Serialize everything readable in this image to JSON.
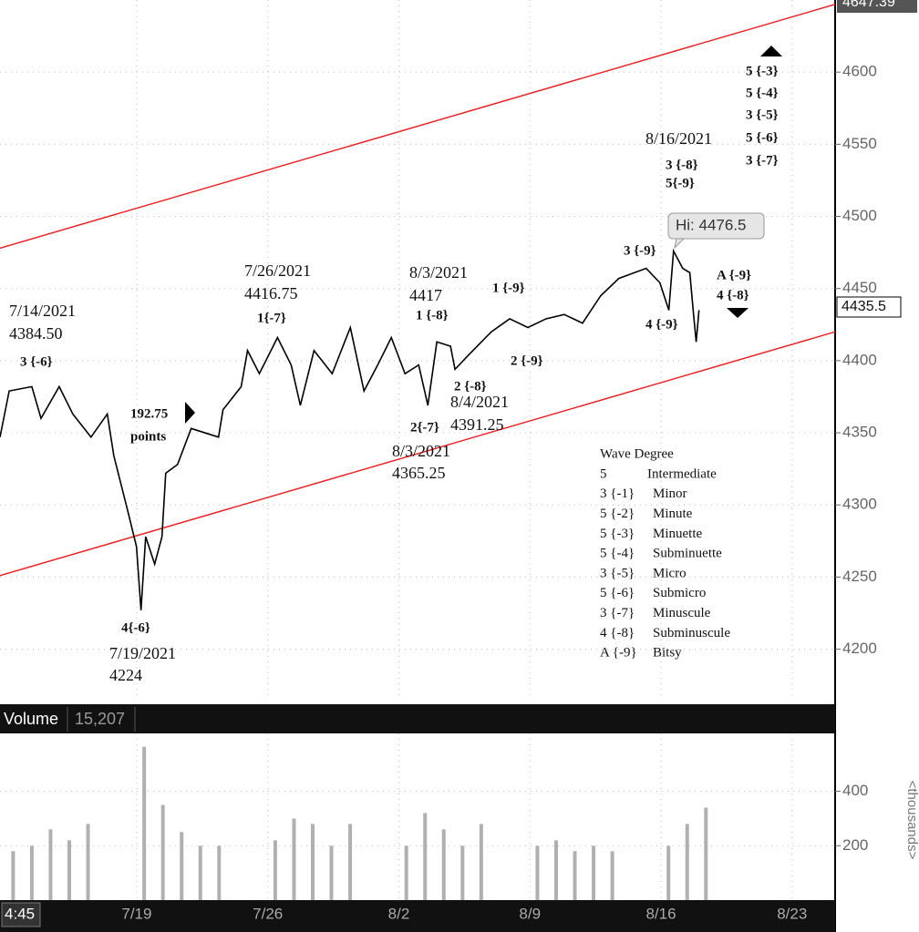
{
  "chart_data": [
    {
      "type": "line",
      "top_label": "4647.39",
      "last_price_label": "4435.5",
      "hi_label": "Hi: 4476.5",
      "cursor_label": "4:45",
      "xlim": [
        192.7,
        237.3
      ],
      "ylim": [
        4165,
        4650
      ],
      "xticks": [
        {
          "value": 200,
          "label": "7/19"
        },
        {
          "value": 207,
          "label": "7/26"
        },
        {
          "value": 214,
          "label": "8/2"
        },
        {
          "value": 221,
          "label": "8/9"
        },
        {
          "value": 228,
          "label": "8/16"
        },
        {
          "value": 235,
          "label": "8/23"
        }
      ],
      "yticks": [
        4200,
        4250,
        4300,
        4350,
        4400,
        4450,
        4500,
        4550,
        4600
      ],
      "grid": true,
      "series": [
        {
          "color": "#000000",
          "x": [
            192.7,
            193.19,
            194.4,
            194.89,
            195.86,
            196.59,
            197.56,
            198.43,
            198.78,
            199.5,
            199.99,
            200.23,
            200.48,
            200.96,
            201.35,
            201.55,
            202.18,
            202.91,
            204.37,
            204.61,
            205.58,
            205.92,
            206.55,
            207.52,
            208.25,
            208.74,
            209.47,
            210.44,
            211.41,
            212.14,
            212.87,
            213.6,
            214.33,
            215.06,
            215.55,
            216.03,
            216.76,
            217.0,
            217.73,
            218.94,
            219.92,
            220.89,
            221.86,
            222.83,
            223.81,
            224.78,
            225.75,
            227.21,
            227.94,
            228.42,
            228.67,
            229.16,
            229.54,
            229.74,
            229.88,
            230.03
          ],
          "values": [
            4347,
            4379,
            4382,
            4360,
            4382,
            4363,
            4347,
            4363,
            4334,
            4297,
            4271,
            4227,
            4278,
            4259,
            4278,
            4322,
            4328,
            4353,
            4347,
            4366,
            4382,
            4407,
            4391,
            4416,
            4397,
            4369,
            4407,
            4391,
            4423,
            4379,
            4397,
            4416,
            4391,
            4397,
            4369,
            4413,
            4410,
            4394,
            4404,
            4420,
            4429,
            4423,
            4429,
            4432,
            4426,
            4445,
            4457,
            4464,
            4454,
            4435,
            4476,
            4464,
            4461,
            4432,
            4413,
            4435
          ]
        }
      ],
      "channel": {
        "color": "#e8262a",
        "lines": [
          {
            "x": [
              192.7,
              237.3
            ],
            "values": [
              4478,
              4647
            ]
          },
          {
            "x": [
              192.7,
              237.3
            ],
            "values": [
              4251,
              4420
            ]
          }
        ]
      },
      "annotations": [
        "7/14/2021",
        "4384.50",
        "3 {-6}",
        "192.75",
        "points",
        "4{-6}",
        "7/19/2021",
        "4224",
        "7/26/2021",
        "4416.75",
        "1{-7}",
        "8/3/2021",
        "4417",
        "1 {-8}",
        "1 {-9}",
        "2{-7}",
        "4391.25",
        "2 {-8}",
        "8/4/2021",
        "2 {-9}",
        "8/3/2021",
        "4365.25",
        "3 {-9}",
        "4 {-9}",
        "8/16/2021",
        "3 {-8}",
        "5{-9}",
        "5 {-3}",
        "5 {-4}",
        "3 {-5}",
        "5 {-6}",
        "3 {-7}",
        "A {-9}",
        "4 {-8}"
      ],
      "wave_degree": {
        "title": "Wave Degree",
        "rows": [
          [
            "5",
            "Intermediate"
          ],
          [
            "3 {-1}",
            "Minor"
          ],
          [
            "5 {-2}",
            "Minute"
          ],
          [
            "5 {-3}",
            "Minuette"
          ],
          [
            "5 {-4}",
            "Subminuette"
          ],
          [
            "3 {-5}",
            "Micro"
          ],
          [
            "5 {-6}",
            "Submicro"
          ],
          [
            "3 {-7}",
            "Minuscule"
          ],
          [
            "4 {-8}",
            "Subminuscule"
          ],
          [
            "A {-9}",
            "Bitsy"
          ]
        ]
      }
    },
    {
      "type": "bar",
      "title": "Volume",
      "readout": "15,207",
      "y_unit_label": "<thousands>",
      "color": "#b0b0b0",
      "xlim": [
        192.7,
        237.3
      ],
      "ylim": [
        0,
        613
      ],
      "yticks": [
        200,
        400
      ],
      "grid": true,
      "x": [
        193.4,
        194.4,
        195.4,
        196.4,
        197.4,
        200.4,
        201.4,
        202.4,
        203.4,
        204.4,
        207.4,
        208.4,
        209.4,
        210.4,
        211.4,
        214.4,
        215.4,
        216.4,
        217.4,
        218.4,
        221.4,
        222.4,
        223.4,
        224.4,
        225.4,
        228.4,
        229.4,
        230.4
      ],
      "values": [
        180,
        200,
        260,
        220,
        280,
        564,
        350,
        250,
        200,
        200,
        220,
        300,
        280,
        200,
        280,
        200,
        320,
        260,
        200,
        280,
        200,
        220,
        180,
        200,
        180,
        200,
        280,
        340
      ]
    }
  ]
}
